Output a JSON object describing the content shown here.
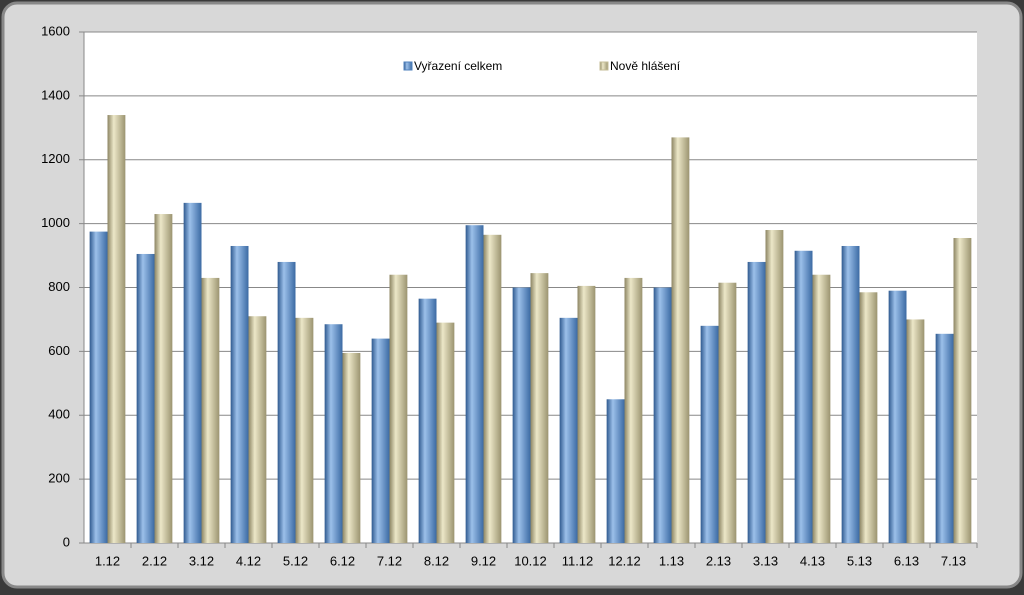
{
  "chart_data": {
    "type": "bar",
    "categories": [
      "1.12",
      "2.12",
      "3.12",
      "4.12",
      "5.12",
      "6.12",
      "7.12",
      "8.12",
      "9.12",
      "10.12",
      "11.12",
      "12.12",
      "1.13",
      "2.13",
      "3.13",
      "4.13",
      "5.13",
      "6.13",
      "7.13"
    ],
    "series": [
      {
        "name": "Vyřazení celkem",
        "color": "#4f81bd",
        "values": [
          975,
          905,
          1065,
          930,
          880,
          685,
          640,
          765,
          995,
          800,
          705,
          450,
          800,
          680,
          880,
          915,
          930,
          790,
          655
        ]
      },
      {
        "name": "Nově hlášení",
        "color": "#c4bd97",
        "values": [
          1340,
          1030,
          830,
          710,
          705,
          595,
          840,
          690,
          965,
          845,
          805,
          830,
          1270,
          815,
          980,
          840,
          785,
          700,
          955
        ]
      }
    ],
    "ylim": [
      0,
      1600
    ],
    "yticks": [
      0,
      200,
      400,
      600,
      800,
      1000,
      1200,
      1400,
      1600
    ],
    "grid": true
  }
}
